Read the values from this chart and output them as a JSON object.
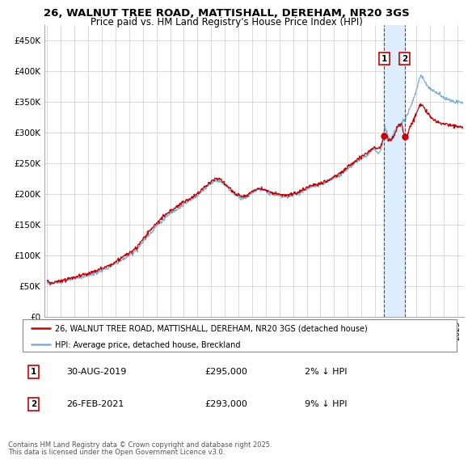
{
  "title_line1": "26, WALNUT TREE ROAD, MATTISHALL, DEREHAM, NR20 3GS",
  "title_line2": "Price paid vs. HM Land Registry's House Price Index (HPI)",
  "ylabel_ticks": [
    "£0",
    "£50K",
    "£100K",
    "£150K",
    "£200K",
    "£250K",
    "£300K",
    "£350K",
    "£400K",
    "£450K"
  ],
  "ylabel_values": [
    0,
    50000,
    100000,
    150000,
    200000,
    250000,
    300000,
    350000,
    400000,
    450000
  ],
  "ylim": [
    0,
    475000
  ],
  "xlim_start": 1994.8,
  "xlim_end": 2025.5,
  "hpi_color": "#7ab0d8",
  "price_color": "#cc0000",
  "marker1_date": 2019.66,
  "marker2_date": 2021.16,
  "marker1_price": 295000,
  "marker2_price": 293000,
  "marker1_hpi": 302000,
  "marker2_hpi": 321000,
  "legend_label1": "26, WALNUT TREE ROAD, MATTISHALL, DEREHAM, NR20 3GS (detached house)",
  "legend_label2": "HPI: Average price, detached house, Breckland",
  "annotation1_date": "30-AUG-2019",
  "annotation1_price": "£295,000",
  "annotation1_pct": "2% ↓ HPI",
  "annotation2_date": "26-FEB-2021",
  "annotation2_price": "£293,000",
  "annotation2_pct": "9% ↓ HPI",
  "footer": "Contains HM Land Registry data © Crown copyright and database right 2025.\nThis data is licensed under the Open Government Licence v3.0.",
  "background_color": "#ffffff",
  "grid_color": "#cccccc",
  "shade_color": "#ddeeff"
}
